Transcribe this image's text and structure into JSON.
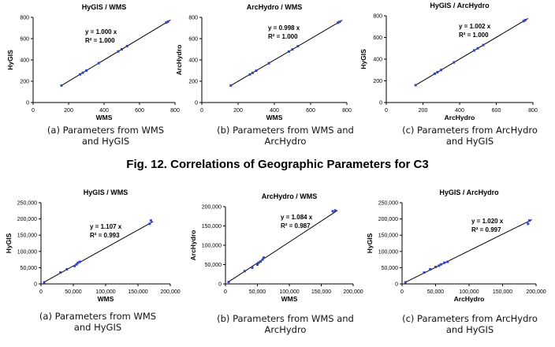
{
  "figure_caption": "Fig. 12. Correlations of Geographic Parameters for C3",
  "colors": {
    "line": "#000000",
    "points": "#3344bb",
    "axis": "#000000"
  },
  "chart_data": [
    {
      "type": "scatter",
      "panel": "top-a",
      "title": "HyGIS / WMS",
      "xlabel": "WMS",
      "ylabel": "HyGIS",
      "xlim": [
        0,
        800
      ],
      "ylim": [
        0,
        800
      ],
      "xticks": [
        0,
        200,
        400,
        600,
        800
      ],
      "yticks": [
        0,
        200,
        400,
        600,
        800
      ],
      "xtick_labels": [
        "0",
        "200",
        "400",
        "600",
        "800"
      ],
      "ytick_labels": [
        "0",
        "200",
        "400",
        "600",
        "800"
      ],
      "x": [
        160,
        265,
        280,
        300,
        370,
        480,
        500,
        530,
        750,
        760
      ],
      "y": [
        160,
        265,
        280,
        300,
        370,
        480,
        500,
        530,
        750,
        760
      ],
      "fit_slope": 1.0,
      "equation": "y = 1.000 x",
      "r2": "R² = 1.000",
      "caption": [
        "(a) Parameters from WMS",
        "and HyGIS"
      ]
    },
    {
      "type": "scatter",
      "panel": "top-b",
      "title": "ArcHydro / WMS",
      "xlabel": "WMS",
      "ylabel": "ArcHydro",
      "xlim": [
        0,
        800
      ],
      "ylim": [
        0,
        800
      ],
      "xticks": [
        0,
        200,
        400,
        600,
        800
      ],
      "yticks": [
        0,
        200,
        400,
        600,
        800
      ],
      "xtick_labels": [
        "0",
        "200",
        "400",
        "600",
        "800"
      ],
      "ytick_labels": [
        "0",
        "200",
        "400",
        "600",
        "800"
      ],
      "x": [
        160,
        265,
        280,
        300,
        370,
        480,
        500,
        530,
        750,
        760
      ],
      "y": [
        160,
        264,
        279,
        299,
        369,
        479,
        499,
        529,
        749,
        758
      ],
      "fit_slope": 0.998,
      "equation": "y = 0.998 x",
      "r2": "R² = 1.000",
      "caption": [
        "(b) Parameters from WMS and",
        "ArcHydro"
      ]
    },
    {
      "type": "scatter",
      "panel": "top-c",
      "title": "HyGIS / ArcHydro",
      "xlabel": "ArcHydro",
      "ylabel": "HyGIS",
      "xlim": [
        0,
        800
      ],
      "ylim": [
        0,
        800
      ],
      "xticks": [
        0,
        200,
        400,
        600,
        800
      ],
      "yticks": [
        0,
        200,
        400,
        600,
        800
      ],
      "xtick_labels": [
        "0",
        "200",
        "400",
        "600",
        "800"
      ],
      "ytick_labels": [
        "0",
        "200",
        "400",
        "600",
        "800"
      ],
      "x": [
        160,
        264,
        279,
        299,
        369,
        479,
        499,
        529,
        749,
        758
      ],
      "y": [
        160,
        265,
        280,
        300,
        370,
        480,
        500,
        530,
        750,
        760
      ],
      "fit_slope": 1.002,
      "equation": "y = 1.002 x",
      "r2": "R² = 1.000",
      "caption": [
        "(c) Parameters from ArcHydro",
        "and HyGIS"
      ]
    },
    {
      "type": "scatter",
      "panel": "bottom-a",
      "title": "HyGIS / WMS",
      "xlabel": "WMS",
      "ylabel": "HyGIS",
      "xlim": [
        0,
        200000
      ],
      "ylim": [
        0,
        250000
      ],
      "xticks": [
        0,
        50000,
        100000,
        150000,
        200000
      ],
      "yticks": [
        0,
        50000,
        100000,
        150000,
        200000,
        250000
      ],
      "xtick_labels": [
        "0",
        "50,000",
        "100,000",
        "150,000",
        "200,000"
      ],
      "ytick_labels": [
        "0",
        "50,000",
        "100,000",
        "150,000",
        "200,000",
        "250,000"
      ],
      "x": [
        5000,
        30000,
        40000,
        52000,
        55000,
        57000,
        60000,
        168000,
        170000
      ],
      "y": [
        5000,
        35000,
        45000,
        55000,
        60000,
        65000,
        68000,
        185000,
        195000
      ],
      "fit_slope": 1.107,
      "equation": "y = 1.107 x",
      "r2": "R² = 0.993",
      "caption": [
        "(a) Parameters from WMS",
        "and HyGIS"
      ]
    },
    {
      "type": "scatter",
      "panel": "bottom-b",
      "title": "ArcHydro / WMS",
      "xlabel": "WMS",
      "ylabel": "ArcHydro",
      "xlim": [
        0,
        200000
      ],
      "ylim": [
        0,
        200000
      ],
      "xticks": [
        0,
        50000,
        100000,
        150000,
        200000
      ],
      "yticks": [
        0,
        50000,
        100000,
        150000,
        200000
      ],
      "xtick_labels": [
        "0",
        "50,000",
        "100,000",
        "150,000",
        "200,000"
      ],
      "ytick_labels": [
        "0",
        "50,000",
        "100,000",
        "150,000",
        "200,000"
      ],
      "x": [
        5000,
        30000,
        42000,
        50000,
        52000,
        55000,
        58000,
        60000,
        168000,
        172000
      ],
      "y": [
        5000,
        33000,
        42000,
        50000,
        55000,
        58000,
        63000,
        68000,
        188000,
        190000
      ],
      "fit_slope": 1.084,
      "equation": "y = 1.084 x",
      "r2": "R² = 0.987",
      "caption": [
        "(b) Parameters from WMS and",
        "ArcHydro"
      ]
    },
    {
      "type": "scatter",
      "panel": "bottom-c",
      "title": "HyGIS / ArcHydro",
      "xlabel": "ArcHydro",
      "ylabel": "HyGIS",
      "xlim": [
        0,
        200000
      ],
      "ylim": [
        0,
        250000
      ],
      "xticks": [
        0,
        50000,
        100000,
        150000,
        200000
      ],
      "yticks": [
        0,
        50000,
        100000,
        150000,
        200000,
        250000
      ],
      "xtick_labels": [
        "0",
        "50,000",
        "100,000",
        "150,000",
        "200,000"
      ],
      "ytick_labels": [
        "0",
        "50,000",
        "100,000",
        "150,000",
        "200,000",
        "250,000"
      ],
      "x": [
        5000,
        33000,
        42000,
        50000,
        55000,
        58000,
        63000,
        68000,
        188000,
        190000
      ],
      "y": [
        5000,
        35000,
        45000,
        52000,
        56000,
        60000,
        65000,
        68000,
        185000,
        195000
      ],
      "fit_slope": 1.02,
      "equation": "y = 1.020 x",
      "r2": "R² = 0.997",
      "caption": [
        "(c) Parameters from ArcHydro",
        "and HyGIS"
      ]
    }
  ]
}
